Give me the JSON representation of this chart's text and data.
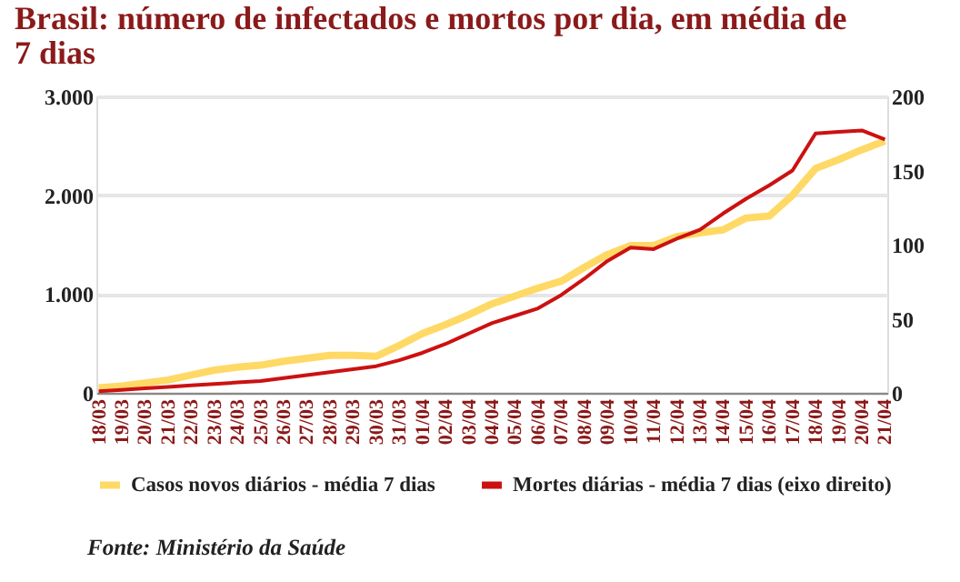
{
  "chart_data": {
    "type": "line",
    "title": "Brasil: número de infectados e mortos por dia, em média de 7 dias",
    "categories": [
      "18/03",
      "19/03",
      "20/03",
      "21/03",
      "22/03",
      "23/03",
      "24/03",
      "25/03",
      "26/03",
      "27/03",
      "28/03",
      "29/03",
      "30/03",
      "31/03",
      "01/04",
      "02/04",
      "03/04",
      "04/04",
      "05/04",
      "06/04",
      "07/04",
      "08/04",
      "09/04",
      "10/04",
      "11/04",
      "12/04",
      "13/04",
      "14/04",
      "15/04",
      "16/04",
      "17/04",
      "18/04",
      "19/04",
      "20/04",
      "21/04"
    ],
    "series": [
      {
        "name": "Casos novos diários  - média 7 dias",
        "color": "#ffd966",
        "values": [
          50,
          70,
          100,
          130,
          180,
          230,
          260,
          280,
          320,
          350,
          380,
          380,
          370,
          480,
          600,
          690,
          790,
          900,
          980,
          1060,
          1130,
          1270,
          1400,
          1490,
          1490,
          1580,
          1620,
          1650,
          1770,
          1790,
          2000,
          2270,
          2360,
          2460,
          2550
        ]
      },
      {
        "name": "Mortes diárias - média 7 dias (eixo direito)",
        "color": "#cc1111",
        "axis": "y2",
        "values": [
          1,
          2,
          3,
          4,
          5,
          6,
          7,
          8,
          10,
          12,
          14,
          16,
          18,
          22,
          27,
          33,
          40,
          47,
          52,
          57,
          66,
          77,
          89,
          98,
          97,
          104,
          110,
          121,
          131,
          140,
          150,
          175,
          176,
          177,
          171
        ]
      }
    ],
    "ylim": [
      0,
      3000
    ],
    "yticks": [
      0,
      {
        "value": 1000,
        "label": "1.000"
      },
      {
        "value": 2000,
        "label": "2.000"
      },
      {
        "value": 3000,
        "label": "3.000"
      }
    ],
    "y2lim": [
      0,
      200
    ],
    "y2ticks": [
      0,
      50,
      100,
      150,
      200
    ],
    "grid": "y",
    "legend": "bottom",
    "marker": "none",
    "line_style": "solid",
    "annotations": [
      "Fonte: Ministério da Saúde"
    ]
  }
}
